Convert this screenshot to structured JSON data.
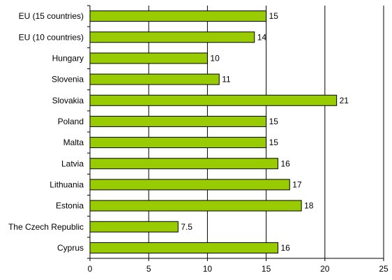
{
  "chart_data": {
    "type": "bar",
    "orientation": "horizontal",
    "categories": [
      "EU (15 countries)",
      "EU (10 countries)",
      "Hungary",
      "Slovenia",
      "Slovakia",
      "Poland",
      "Malta",
      "Latvia",
      "Lithuania",
      "Estonia",
      "The Czech Republic",
      "Cyprus"
    ],
    "values": [
      15,
      14,
      10,
      11,
      21,
      15,
      15,
      16,
      17,
      18,
      7.5,
      16
    ],
    "value_labels": [
      "15",
      "14",
      "10",
      "11",
      "21",
      "15",
      "15",
      "16",
      "17",
      "18",
      "7.5",
      "16"
    ],
    "title": "",
    "xlabel": "",
    "ylabel": "",
    "xlim": [
      0,
      25
    ],
    "x_ticks": [
      "0",
      "5",
      "10",
      "15",
      "20",
      "25"
    ],
    "grid": "vertical major gridlines",
    "legend": "none",
    "colors": {
      "bar_fill": "#99cc00",
      "bar_stroke": "#000000",
      "grid": "#000000",
      "axis": "#000000"
    }
  }
}
